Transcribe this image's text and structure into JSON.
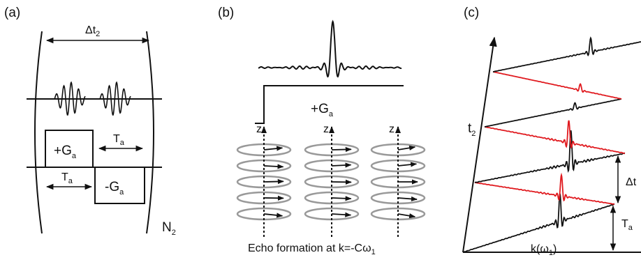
{
  "panel_a": {
    "label": "(a)",
    "delta_t": {
      "base": "Δt",
      "sub": "2"
    },
    "plus_g": {
      "base": "+G",
      "sub": "a"
    },
    "t_a_top": {
      "base": "T",
      "sub": "a"
    },
    "t_a_bottom": {
      "base": "T",
      "sub": "a"
    },
    "minus_g": {
      "base": "-G",
      "sub": "a"
    },
    "repeat": {
      "base": "N",
      "sub": "2"
    }
  },
  "panel_b": {
    "label": "(b)",
    "gradient": {
      "base": "+G",
      "sub": "a"
    },
    "axis_labels": [
      "z",
      "z",
      "z"
    ],
    "caption": {
      "base": "Echo formation at k=-Cω",
      "sub": "1"
    }
  },
  "panel_c": {
    "label": "(c)",
    "t_axis": {
      "base": "t",
      "sub": "2"
    },
    "delta_t": "Δt",
    "t_a": {
      "base": "T",
      "sub": "a"
    },
    "k_axis": {
      "base": "k(ω",
      "sub": "1",
      "tail": ")"
    }
  }
}
